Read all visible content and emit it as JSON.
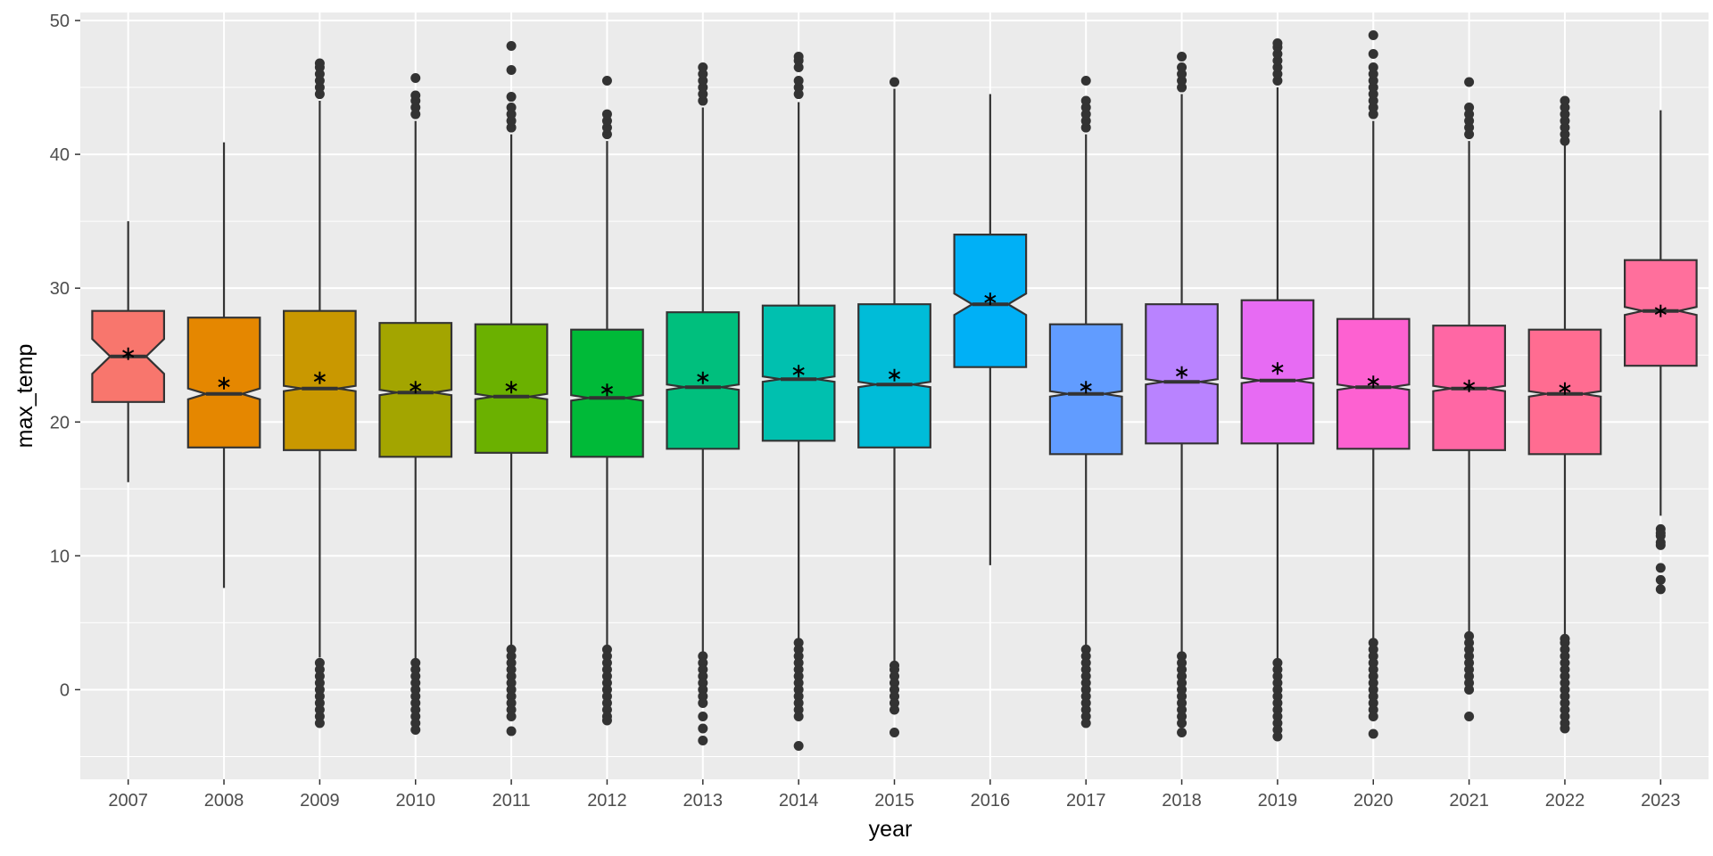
{
  "chart_data": {
    "type": "boxplot",
    "notched": true,
    "mean_marker": "asterisk",
    "title": "",
    "xlabel": "year",
    "ylabel": "max_temp",
    "ylim": [
      -6.7,
      50.6
    ],
    "y_ticks": [
      0,
      10,
      20,
      30,
      40,
      50
    ],
    "grid": true,
    "legend": "none",
    "categories": [
      "2007",
      "2008",
      "2009",
      "2010",
      "2011",
      "2012",
      "2013",
      "2014",
      "2015",
      "2016",
      "2017",
      "2018",
      "2019",
      "2020",
      "2021",
      "2022",
      "2023"
    ],
    "colors": [
      "#F8766D",
      "#E58700",
      "#C99800",
      "#A3A500",
      "#6BB100",
      "#00BA38",
      "#00BF7D",
      "#00C0AF",
      "#00BCD8",
      "#00B0F6",
      "#619CFF",
      "#B983FF",
      "#E76BF3",
      "#FD61D1",
      "#FF67A4",
      "#FF6C91",
      "#FF6F9C"
    ],
    "boxes": [
      {
        "year": "2007",
        "lower_whisker": 15.5,
        "q1": 21.5,
        "median": 24.9,
        "q3": 28.3,
        "upper_whisker": 35.0,
        "mean": 25.1,
        "notch": [
          23.6,
          26.2
        ],
        "outliers": []
      },
      {
        "year": "2008",
        "lower_whisker": 7.6,
        "q1": 18.1,
        "median": 22.1,
        "q3": 27.8,
        "upper_whisker": 40.9,
        "mean": 22.9,
        "notch": [
          21.7,
          22.5
        ],
        "outliers": []
      },
      {
        "year": "2009",
        "lower_whisker": 2.4,
        "q1": 17.9,
        "median": 22.5,
        "q3": 28.3,
        "upper_whisker": 44.0,
        "mean": 23.3,
        "notch": [
          22.3,
          22.7
        ],
        "outliers": [
          2.0,
          1.5,
          1.0,
          0.5,
          0.0,
          -0.5,
          -1.0,
          -1.5,
          -2.0,
          -2.5,
          44.5,
          45.0,
          45.5,
          46.0,
          46.5,
          46.8
        ]
      },
      {
        "year": "2010",
        "lower_whisker": 2.3,
        "q1": 17.4,
        "median": 22.2,
        "q3": 27.4,
        "upper_whisker": 42.5,
        "mean": 22.6,
        "notch": [
          22.0,
          22.4
        ],
        "outliers": [
          2.0,
          1.5,
          1.0,
          0.5,
          0.0,
          -0.5,
          -1.0,
          -1.5,
          -2.0,
          -2.5,
          -3.0,
          43.0,
          43.5,
          44.0,
          44.4,
          45.7
        ]
      },
      {
        "year": "2011",
        "lower_whisker": 3.0,
        "q1": 17.7,
        "median": 21.9,
        "q3": 27.3,
        "upper_whisker": 41.5,
        "mean": 22.6,
        "notch": [
          21.7,
          22.1
        ],
        "outliers": [
          3.0,
          2.5,
          2.0,
          1.5,
          1.0,
          0.5,
          0.0,
          -0.5,
          -1.0,
          -1.5,
          -2.0,
          -3.1,
          42.0,
          42.5,
          43.0,
          43.5,
          44.3,
          46.3,
          48.1
        ]
      },
      {
        "year": "2012",
        "lower_whisker": 3.0,
        "q1": 17.4,
        "median": 21.8,
        "q3": 26.9,
        "upper_whisker": 41.0,
        "mean": 22.4,
        "notch": [
          21.6,
          22.0
        ],
        "outliers": [
          3.0,
          2.5,
          2.0,
          1.5,
          1.0,
          0.5,
          0.0,
          -0.5,
          -1.0,
          -1.5,
          -2.0,
          -2.3,
          41.5,
          42.0,
          42.5,
          43.0,
          45.5
        ]
      },
      {
        "year": "2013",
        "lower_whisker": 2.7,
        "q1": 18.0,
        "median": 22.6,
        "q3": 28.2,
        "upper_whisker": 43.5,
        "mean": 23.3,
        "notch": [
          22.4,
          22.8
        ],
        "outliers": [
          2.5,
          2.0,
          1.5,
          1.0,
          0.5,
          0.0,
          -0.5,
          -1.0,
          -2.0,
          -2.9,
          -3.8,
          44.0,
          44.5,
          45.0,
          45.5,
          46.0,
          46.5
        ]
      },
      {
        "year": "2014",
        "lower_whisker": 3.5,
        "q1": 18.6,
        "median": 23.2,
        "q3": 28.7,
        "upper_whisker": 43.9,
        "mean": 23.8,
        "notch": [
          23.0,
          23.4
        ],
        "outliers": [
          3.5,
          3.0,
          2.5,
          2.0,
          1.5,
          1.0,
          0.5,
          0.0,
          -0.5,
          -1.0,
          -1.5,
          -2.0,
          -4.2,
          44.5,
          45.0,
          45.5,
          46.5,
          47.0,
          47.3
        ]
      },
      {
        "year": "2015",
        "lower_whisker": 1.9,
        "q1": 18.1,
        "median": 22.8,
        "q3": 28.8,
        "upper_whisker": 44.9,
        "mean": 23.5,
        "notch": [
          22.6,
          23.0
        ],
        "outliers": [
          1.8,
          1.5,
          1.0,
          0.5,
          0.0,
          -0.5,
          -1.0,
          -1.5,
          -3.2,
          45.4
        ]
      },
      {
        "year": "2016",
        "lower_whisker": 9.3,
        "q1": 24.1,
        "median": 28.8,
        "q3": 34.0,
        "upper_whisker": 44.5,
        "mean": 29.2,
        "notch": [
          28.0,
          29.6
        ],
        "outliers": []
      },
      {
        "year": "2017",
        "lower_whisker": 3.0,
        "q1": 17.6,
        "median": 22.1,
        "q3": 27.3,
        "upper_whisker": 41.5,
        "mean": 22.6,
        "notch": [
          21.9,
          22.3
        ],
        "outliers": [
          3.0,
          2.5,
          2.0,
          1.5,
          1.0,
          0.5,
          0.0,
          -0.5,
          -1.0,
          -1.5,
          -2.0,
          -2.5,
          42.0,
          42.5,
          43.0,
          43.5,
          44.0,
          45.5
        ]
      },
      {
        "year": "2018",
        "lower_whisker": 2.8,
        "q1": 18.4,
        "median": 23.0,
        "q3": 28.8,
        "upper_whisker": 44.5,
        "mean": 23.7,
        "notch": [
          22.8,
          23.2
        ],
        "outliers": [
          2.5,
          2.0,
          1.5,
          1.0,
          0.5,
          0.0,
          -0.5,
          -1.0,
          -1.5,
          -2.0,
          -2.5,
          -3.2,
          45.0,
          45.5,
          46.0,
          46.5,
          47.3
        ]
      },
      {
        "year": "2019",
        "lower_whisker": 2.1,
        "q1": 18.4,
        "median": 23.1,
        "q3": 29.1,
        "upper_whisker": 45.0,
        "mean": 24.0,
        "notch": [
          22.9,
          23.3
        ],
        "outliers": [
          2.0,
          1.5,
          1.0,
          0.5,
          0.0,
          -0.5,
          -1.0,
          -1.5,
          -2.0,
          -2.5,
          -3.0,
          -3.5,
          45.5,
          46.0,
          46.5,
          47.0,
          47.5,
          48.0,
          48.3
        ]
      },
      {
        "year": "2020",
        "lower_whisker": 3.5,
        "q1": 18.0,
        "median": 22.6,
        "q3": 27.7,
        "upper_whisker": 42.5,
        "mean": 23.0,
        "notch": [
          22.4,
          22.8
        ],
        "outliers": [
          3.5,
          3.0,
          2.5,
          2.0,
          1.5,
          1.0,
          0.5,
          0.0,
          -0.5,
          -1.0,
          -1.5,
          -2.0,
          -3.3,
          43.0,
          43.5,
          44.0,
          44.5,
          45.0,
          45.5,
          46.0,
          46.5,
          47.5,
          48.9
        ]
      },
      {
        "year": "2021",
        "lower_whisker": 4.0,
        "q1": 17.9,
        "median": 22.5,
        "q3": 27.2,
        "upper_whisker": 41.0,
        "mean": 22.7,
        "notch": [
          22.3,
          22.7
        ],
        "outliers": [
          4.0,
          3.5,
          3.0,
          2.5,
          2.0,
          1.5,
          1.0,
          0.5,
          0.0,
          -2.0,
          41.5,
          42.0,
          42.5,
          43.0,
          43.5,
          45.4
        ]
      },
      {
        "year": "2022",
        "lower_whisker": 3.8,
        "q1": 17.6,
        "median": 22.1,
        "q3": 26.9,
        "upper_whisker": 40.8,
        "mean": 22.5,
        "notch": [
          21.9,
          22.3
        ],
        "outliers": [
          3.8,
          3.5,
          3.0,
          2.5,
          2.0,
          1.5,
          1.0,
          0.5,
          0.0,
          -0.5,
          -1.0,
          -1.5,
          -2.0,
          -2.5,
          -2.9,
          41.0,
          41.5,
          42.0,
          42.5,
          43.0,
          43.5,
          44.0
        ]
      },
      {
        "year": "2023",
        "lower_whisker": 13.0,
        "q1": 24.2,
        "median": 28.3,
        "q3": 32.1,
        "upper_whisker": 43.3,
        "mean": 28.3,
        "notch": [
          28.0,
          28.6
        ],
        "outliers": [
          12.0,
          11.7,
          11.5,
          11.0,
          10.8,
          9.1,
          8.2,
          7.5
        ]
      }
    ]
  }
}
